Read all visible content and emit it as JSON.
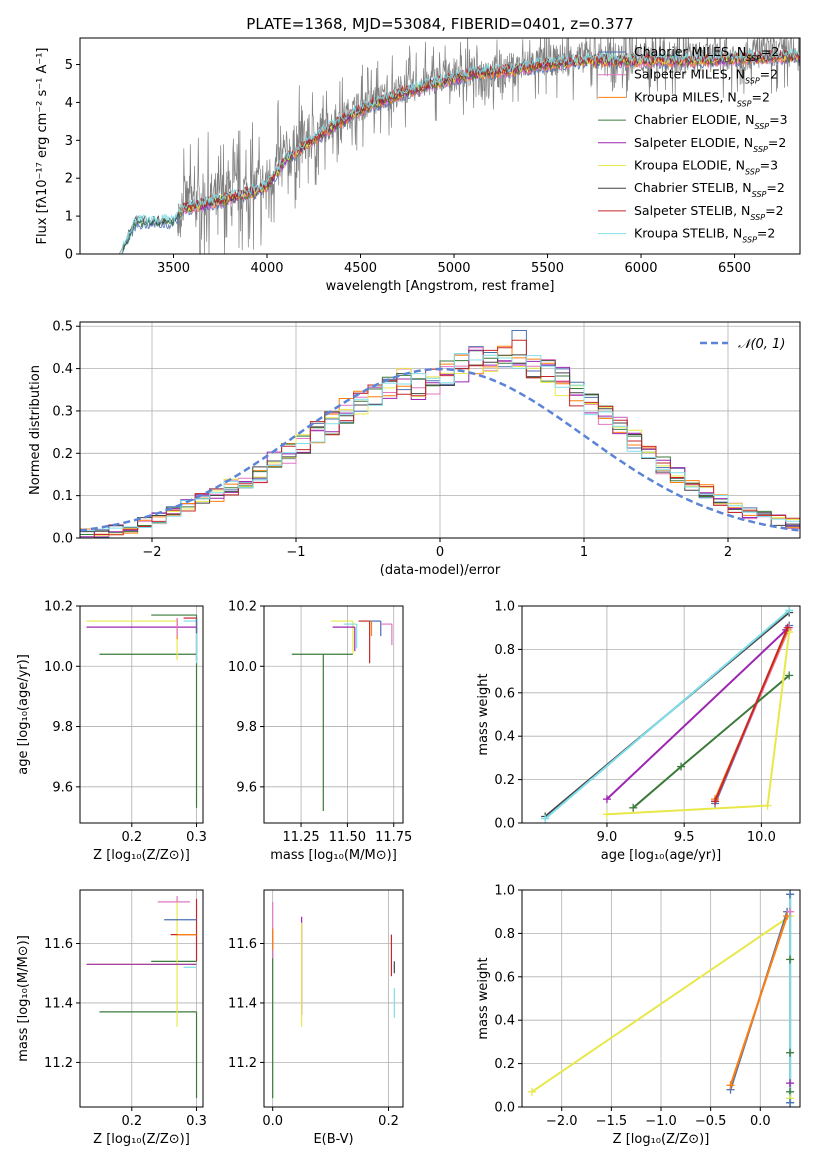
{
  "figure": {
    "title": "PLATE=1368, MJD=53084, FIBERID=0401, z=0.377"
  },
  "chart_data": [
    {
      "id": "spectrum",
      "type": "line",
      "xlabel": "wavelength [Angstrom, rest frame]",
      "ylabel": "Flux [fλ10⁻¹⁷ erg cm⁻² s⁻¹ A⁻¹]",
      "xlim": [
        3000,
        6850
      ],
      "ylim": [
        0,
        5.7
      ],
      "xticks": [
        3500,
        4000,
        4500,
        5000,
        5500,
        6000,
        6500
      ],
      "yticks": [
        0,
        1,
        2,
        3,
        4,
        5
      ],
      "legend_position": "top-right",
      "data_anchor_wavelength": [
        3210,
        3300,
        3500,
        3550,
        3700,
        3900,
        4000,
        4100,
        4300,
        4500,
        4700,
        4900,
        5100,
        5300,
        5500,
        5700,
        5900,
        6100,
        6300,
        6500,
        6700
      ],
      "data_anchor_flux": [
        0.0,
        0.85,
        0.85,
        1.4,
        1.5,
        1.7,
        1.9,
        2.6,
        3.3,
        3.9,
        4.3,
        4.6,
        4.8,
        4.9,
        5.1,
        5.2,
        5.15,
        5.2,
        5.2,
        5.25,
        5.3
      ],
      "model_anchor_flux": [
        0.0,
        0.85,
        0.85,
        1.2,
        1.35,
        1.6,
        1.8,
        2.5,
        3.2,
        3.8,
        4.2,
        4.5,
        4.75,
        4.85,
        5.0,
        5.1,
        5.1,
        5.1,
        5.1,
        5.15,
        5.2
      ],
      "series": [
        {
          "name": "Chabrier MILES, N_SSP=2",
          "color": "#4c72b0"
        },
        {
          "name": "Salpeter MILES, N_SSP=2",
          "color": "#e377c2"
        },
        {
          "name": "Kroupa MILES, N_SSP=2",
          "color": "#ff7f0e"
        },
        {
          "name": "Chabrier ELODIE, N_SSP=3",
          "color": "#3b7a3b"
        },
        {
          "name": "Salpeter ELODIE, N_SSP=2",
          "color": "#9c27b0"
        },
        {
          "name": "Kroupa ELODIE, N_SSP=3",
          "color": "#e8e84a"
        },
        {
          "name": "Chabrier STELIB, N_SSP=2",
          "color": "#444444"
        },
        {
          "name": "Salpeter STELIB, N_SSP=2",
          "color": "#c62828"
        },
        {
          "name": "Kroupa STELIB, N_SSP=2",
          "color": "#80deea"
        }
      ]
    },
    {
      "id": "residuals",
      "type": "line",
      "xlabel": "(data-model)/error",
      "ylabel": "Normed distribution",
      "xlim": [
        -2.5,
        2.5
      ],
      "ylim": [
        0,
        0.51
      ],
      "xticks": [
        -2,
        -1,
        0,
        1,
        2
      ],
      "yticks": [
        0.0,
        0.1,
        0.2,
        0.3,
        0.4,
        0.5
      ],
      "legend_label": "𝒩(0, 1)",
      "legend_color": "#5b84d6",
      "legend_position": "top-right",
      "hist_x": [
        -2.5,
        -2.4,
        -2.3,
        -2.2,
        -2.1,
        -2.0,
        -1.9,
        -1.8,
        -1.7,
        -1.6,
        -1.5,
        -1.4,
        -1.3,
        -1.2,
        -1.1,
        -1.0,
        -0.9,
        -0.8,
        -0.7,
        -0.6,
        -0.5,
        -0.4,
        -0.3,
        -0.2,
        -0.1,
        0.0,
        0.1,
        0.2,
        0.3,
        0.4,
        0.5,
        0.6,
        0.7,
        0.8,
        0.9,
        1.0,
        1.1,
        1.2,
        1.3,
        1.4,
        1.5,
        1.6,
        1.7,
        1.8,
        1.9,
        2.0,
        2.1,
        2.2,
        2.3,
        2.4
      ],
      "hist_base": [
        0.01,
        0.015,
        0.02,
        0.025,
        0.035,
        0.045,
        0.06,
        0.075,
        0.09,
        0.1,
        0.12,
        0.13,
        0.15,
        0.18,
        0.2,
        0.22,
        0.25,
        0.27,
        0.3,
        0.32,
        0.34,
        0.35,
        0.37,
        0.36,
        0.37,
        0.39,
        0.4,
        0.42,
        0.43,
        0.44,
        0.43,
        0.41,
        0.39,
        0.37,
        0.34,
        0.32,
        0.29,
        0.26,
        0.23,
        0.2,
        0.17,
        0.15,
        0.13,
        0.11,
        0.09,
        0.07,
        0.06,
        0.05,
        0.04,
        0.035
      ],
      "series_colors": [
        "#4c72b0",
        "#e377c2",
        "#ff7f0e",
        "#3b7a3b",
        "#9c27b0",
        "#e8e84a",
        "#444444",
        "#c62828",
        "#80deea"
      ]
    },
    {
      "id": "age-vs-Z",
      "type": "scatter",
      "xlabel": "Z [log₁₀(Z/Z⊙)]",
      "ylabel": "age  [log₁₀(age/yr)]",
      "xlim": [
        0.12,
        0.31
      ],
      "ylim": [
        9.48,
        10.2
      ],
      "xticks": [
        0.2,
        0.3
      ],
      "yticks": [
        9.6,
        9.8,
        10.0,
        10.2
      ],
      "points": [
        {
          "x": 0.3,
          "y": 10.17,
          "xerr": [
            0.07,
            0.0
          ],
          "yerr": [
            0.64,
            0.0
          ],
          "color": "#3b7a3b"
        },
        {
          "x": 0.3,
          "y": 10.04,
          "xerr": [
            0.15,
            0.0
          ],
          "yerr": [
            0.0,
            0.0
          ],
          "color": "#3b7a3b"
        },
        {
          "x": 0.27,
          "y": 10.15,
          "xerr": [
            0.14,
            0.0
          ],
          "yerr": [
            0.13,
            0.0
          ],
          "color": "#e8e84a"
        },
        {
          "x": 0.3,
          "y": 10.13,
          "xerr": [
            0.17,
            0.0
          ],
          "yerr": [
            0.11,
            0.0
          ],
          "color": "#9c27b0"
        },
        {
          "x": 0.3,
          "y": 10.15,
          "xerr": [
            0.02,
            0.0
          ],
          "yerr": [
            0.14,
            0.0
          ],
          "color": "#80deea"
        },
        {
          "x": 0.3,
          "y": 10.16,
          "xerr": [
            0.02,
            0.0
          ],
          "yerr": [
            0.05,
            0.0
          ],
          "color": "#c62828"
        },
        {
          "x": 0.27,
          "y": 10.16,
          "xerr": [
            0.0,
            0.0
          ],
          "yerr": [
            0.07,
            0.0
          ],
          "color": "#ff7f0e"
        },
        {
          "x": 0.27,
          "y": 10.16,
          "xerr": [
            0.0,
            0.0
          ],
          "yerr": [
            0.06,
            0.0
          ],
          "color": "#e377c2"
        },
        {
          "x": 0.3,
          "y": 10.16,
          "xerr": [
            0.0,
            0.0
          ],
          "yerr": [
            0.05,
            0.0
          ],
          "color": "#4c72b0"
        }
      ]
    },
    {
      "id": "age-vs-mass",
      "type": "scatter",
      "xlabel": "mass [log₁₀(M/M⊙)]",
      "ylabel": "",
      "xlim": [
        11.05,
        11.8
      ],
      "ylim": [
        9.48,
        10.2
      ],
      "xticks": [
        11.25,
        11.5,
        11.75
      ],
      "yticks": [
        9.6,
        9.8,
        10.0,
        10.2
      ],
      "points": [
        {
          "x": 11.37,
          "y": 10.04,
          "xerr": [
            0.17,
            0.16
          ],
          "yerr": [
            0.52,
            0.0
          ],
          "color": "#3b7a3b"
        },
        {
          "x": 11.53,
          "y": 10.15,
          "xerr": [
            0.12,
            0.0
          ],
          "yerr": [
            0.11,
            0.0
          ],
          "color": "#e8e84a"
        },
        {
          "x": 11.54,
          "y": 10.13,
          "xerr": [
            0.12,
            0.0
          ],
          "yerr": [
            0.08,
            0.0
          ],
          "color": "#9c27b0"
        },
        {
          "x": 11.55,
          "y": 10.14,
          "xerr": [
            0.07,
            0.0
          ],
          "yerr": [
            0.08,
            0.0
          ],
          "color": "#80deea"
        },
        {
          "x": 11.62,
          "y": 10.15,
          "xerr": [
            0.06,
            0.0
          ],
          "yerr": [
            0.14,
            0.0
          ],
          "color": "#c62828"
        },
        {
          "x": 11.68,
          "y": 10.15,
          "xerr": [
            0.06,
            0.0
          ],
          "yerr": [
            0.05,
            0.0
          ],
          "color": "#4c72b0"
        },
        {
          "x": 11.74,
          "y": 10.14,
          "xerr": [
            0.06,
            0.0
          ],
          "yerr": [
            0.07,
            0.0
          ],
          "color": "#e377c2"
        },
        {
          "x": 11.63,
          "y": 10.15,
          "xerr": [
            0.0,
            0.0
          ],
          "yerr": [
            0.05,
            0.0
          ],
          "color": "#ff7f0e"
        }
      ]
    },
    {
      "id": "weight-vs-age",
      "type": "line",
      "xlabel": "age  [log₁₀(age/yr)]",
      "ylabel": "mass weight",
      "xlim": [
        8.45,
        10.25
      ],
      "ylim": [
        0,
        1.0
      ],
      "xticks": [
        9.0,
        9.5,
        10.0
      ],
      "yticks": [
        0.0,
        0.2,
        0.4,
        0.6,
        0.8,
        1.0
      ],
      "series": [
        {
          "name": "Chabrier MILES",
          "color": "#4c72b0",
          "x": [
            9.7,
            10.18
          ],
          "y": [
            0.09,
            0.91
          ]
        },
        {
          "name": "Salpeter MILES",
          "color": "#e377c2",
          "x": [
            9.7,
            10.18
          ],
          "y": [
            0.1,
            0.9
          ]
        },
        {
          "name": "Kroupa MILES",
          "color": "#ff7f0e",
          "x": [
            9.7,
            10.17
          ],
          "y": [
            0.11,
            0.89
          ]
        },
        {
          "name": "Chabrier ELODIE",
          "color": "#3b7a3b",
          "x": [
            9.17,
            9.48,
            10.18
          ],
          "y": [
            0.07,
            0.26,
            0.68
          ]
        },
        {
          "name": "Salpeter ELODIE",
          "color": "#9c27b0",
          "x": [
            9.0,
            10.16
          ],
          "y": [
            0.11,
            0.89
          ]
        },
        {
          "name": "Kroupa ELODIE",
          "color": "#e8e84a",
          "x": [
            9.0,
            10.04,
            10.18
          ],
          "y": [
            0.04,
            0.08,
            0.88
          ]
        },
        {
          "name": "Chabrier STELIB",
          "color": "#444444",
          "x": [
            8.6,
            10.18
          ],
          "y": [
            0.03,
            0.97
          ]
        },
        {
          "name": "Salpeter STELIB",
          "color": "#c62828",
          "x": [
            9.7,
            10.17
          ],
          "y": [
            0.1,
            0.9
          ]
        },
        {
          "name": "Kroupa STELIB",
          "color": "#80deea",
          "x": [
            8.6,
            10.18
          ],
          "y": [
            0.02,
            0.98
          ]
        }
      ]
    },
    {
      "id": "mass-vs-Z",
      "type": "scatter",
      "xlabel": "Z [log₁₀(Z/Z⊙)]",
      "ylabel": "mass [log₁₀(M/M⊙)]",
      "xlim": [
        0.12,
        0.31
      ],
      "ylim": [
        11.05,
        11.78
      ],
      "xticks": [
        0.2,
        0.3
      ],
      "yticks": [
        11.2,
        11.4,
        11.6
      ],
      "points": [
        {
          "x": 0.3,
          "y": 11.37,
          "xerr": [
            0.15,
            0.0
          ],
          "yerr": [
            0.29,
            0.0
          ],
          "color": "#3b7a3b"
        },
        {
          "x": 0.3,
          "y": 11.54,
          "xerr": [
            0.07,
            0.0
          ],
          "yerr": [
            0.0,
            0.0
          ],
          "color": "#3b7a3b"
        },
        {
          "x": 0.27,
          "y": 11.53,
          "xerr": [
            0.14,
            0.03
          ],
          "yerr": [
            0.21,
            0.22
          ],
          "color": "#e8e84a"
        },
        {
          "x": 0.3,
          "y": 11.53,
          "xerr": [
            0.17,
            0.0
          ],
          "yerr": [
            0.0,
            0.0
          ],
          "color": "#9c27b0"
        },
        {
          "x": 0.3,
          "y": 11.52,
          "xerr": [
            0.02,
            0.0
          ],
          "yerr": [
            0.0,
            0.0
          ],
          "color": "#80deea"
        },
        {
          "x": 0.3,
          "y": 11.63,
          "xerr": [
            0.04,
            0.0
          ],
          "yerr": [
            0.09,
            0.12
          ],
          "color": "#c62828"
        },
        {
          "x": 0.3,
          "y": 11.68,
          "xerr": [
            0.05,
            0.0
          ],
          "yerr": [
            0.0,
            0.0
          ],
          "color": "#4c72b0"
        },
        {
          "x": 0.27,
          "y": 11.74,
          "xerr": [
            0.03,
            0.02
          ],
          "yerr": [
            0.0,
            0.02
          ],
          "color": "#e377c2"
        },
        {
          "x": 0.27,
          "y": 11.63,
          "xerr": [
            0.0,
            0.03
          ],
          "yerr": [
            0.0,
            0.0
          ],
          "color": "#ff7f0e"
        }
      ]
    },
    {
      "id": "mass-vs-EBV",
      "type": "scatter",
      "xlabel": "E(B-V)",
      "ylabel": "",
      "xlim": [
        -0.015,
        0.225
      ],
      "ylim": [
        11.05,
        11.78
      ],
      "xticks": [
        0.0,
        0.2
      ],
      "yticks": [
        11.2,
        11.4,
        11.6
      ],
      "points": [
        {
          "x": 0.0,
          "y": 11.55,
          "xerr": [
            0,
            0
          ],
          "yerr": [
            0.47,
            0.1
          ],
          "color": "#3b7a3b"
        },
        {
          "x": 0.0,
          "y": 11.62,
          "xerr": [
            0,
            0
          ],
          "yerr": [
            0.07,
            0.12
          ],
          "color": "#e377c2"
        },
        {
          "x": 0.0,
          "y": 11.58,
          "xerr": [
            0,
            0
          ],
          "yerr": [
            0.0,
            0.07
          ],
          "color": "#ff7f0e"
        },
        {
          "x": 0.05,
          "y": 11.52,
          "xerr": [
            0,
            0
          ],
          "yerr": [
            0.16,
            0.17
          ],
          "color": "#9c27b0"
        },
        {
          "x": 0.05,
          "y": 11.5,
          "xerr": [
            0,
            0
          ],
          "yerr": [
            0.18,
            0.17
          ],
          "color": "#e8e84a"
        },
        {
          "x": 0.205,
          "y": 11.54,
          "xerr": [
            0,
            0
          ],
          "yerr": [
            0.05,
            0.09
          ],
          "color": "#c62828"
        },
        {
          "x": 0.21,
          "y": 11.45,
          "xerr": [
            0,
            0
          ],
          "yerr": [
            0.1,
            0.0
          ],
          "color": "#80deea"
        },
        {
          "x": 0.21,
          "y": 11.54,
          "xerr": [
            0,
            0
          ],
          "yerr": [
            0.04,
            0.0
          ],
          "color": "#444444"
        }
      ]
    },
    {
      "id": "weight-vs-Z",
      "type": "line",
      "xlabel": "Z [log₁₀(Z/Z⊙)]",
      "ylabel": "mass weight",
      "xlim": [
        -2.4,
        0.4
      ],
      "ylim": [
        0,
        1.0
      ],
      "xticks": [
        -2.0,
        -1.5,
        -1.0,
        -0.5,
        0.0
      ],
      "yticks": [
        0.0,
        0.2,
        0.4,
        0.6,
        0.8,
        1.0
      ],
      "series": [
        {
          "name": "Kroupa ELODIE",
          "color": "#e8e84a",
          "x": [
            -2.3,
            0.3
          ],
          "y": [
            0.07,
            0.88
          ]
        },
        {
          "name": "Chabrier MILES",
          "color": "#4c72b0",
          "x": [
            -0.3,
            0.27
          ],
          "y": [
            0.08,
            0.9
          ]
        },
        {
          "name": "Kroupa MILES",
          "color": "#ff7f0e",
          "x": [
            -0.3,
            0.27
          ],
          "y": [
            0.1,
            0.88
          ]
        },
        {
          "name": "Chabrier STELIB",
          "color": "#444444",
          "x": [
            0.3,
            0.3
          ],
          "y": [
            0.02,
            0.98
          ]
        },
        {
          "name": "Kroupa STELIB",
          "color": "#80deea",
          "x": [
            0.3,
            0.3
          ],
          "y": [
            0.02,
            0.98
          ]
        }
      ],
      "markers": [
        {
          "x": 0.3,
          "y": 0.98,
          "color": "#4c72b0"
        },
        {
          "x": 0.3,
          "y": 0.9,
          "color": "#e377c2"
        },
        {
          "x": 0.3,
          "y": 0.68,
          "color": "#3b7a3b"
        },
        {
          "x": 0.3,
          "y": 0.25,
          "color": "#3b7a3b"
        },
        {
          "x": 0.3,
          "y": 0.11,
          "color": "#9c27b0"
        },
        {
          "x": 0.3,
          "y": 0.07,
          "color": "#3b7a3b"
        },
        {
          "x": 0.3,
          "y": 0.04,
          "color": "#e8e84a"
        },
        {
          "x": 0.3,
          "y": 0.02,
          "color": "#4c72b0"
        }
      ]
    }
  ]
}
